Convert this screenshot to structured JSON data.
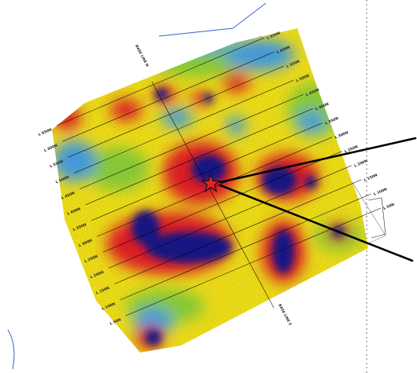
{
  "map": {
    "line_labels_right": [
      "L 650N",
      "L 600N",
      "L 550N",
      "L 500N",
      "L 450N",
      "L 400N",
      "L 350N",
      "L 300N",
      "L 250N",
      "L 200N",
      "L 150N",
      "L 100N",
      "L 50N"
    ],
    "line_labels_left": [
      "L 650N",
      "L 600N",
      "L 550N",
      "L 500N",
      "L 450N",
      "L 400N",
      "L 350N",
      "L 300N",
      "L 250N",
      "L 200N",
      "L 150N",
      "L 100N",
      "L 50N"
    ],
    "baseline_labels": [
      "BASE LINE N",
      "BASE LINE S"
    ],
    "star_marker": "drill-target-star",
    "colors": {
      "background": "#ffffff",
      "low": "#1a1a8c",
      "mid_low": "#e8222a",
      "mid": "#f6e51e",
      "mid_high": "#8fd43a",
      "high": "#4aa3e6",
      "star": "#e8222a"
    }
  }
}
